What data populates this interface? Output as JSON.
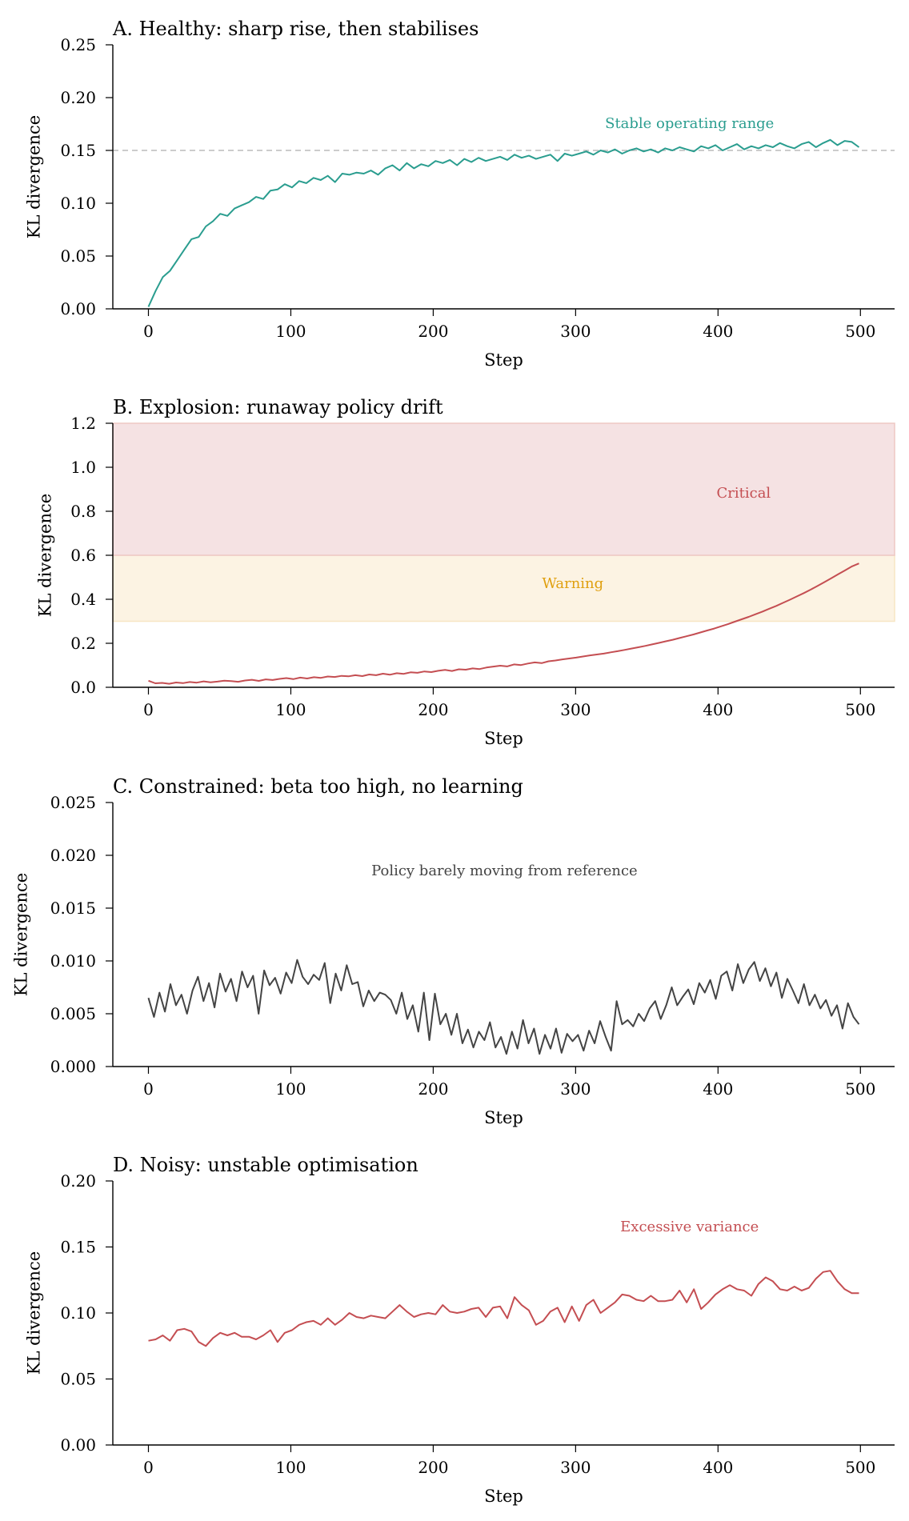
{
  "figure": {
    "panels": [
      {
        "id": "A",
        "title": "A. Healthy: sharp rise, then stabilises",
        "xlabel": "Step",
        "ylabel": "KL divergence",
        "color": "#2a9d8f"
      },
      {
        "id": "B",
        "title": "B. Explosion: runaway policy drift",
        "xlabel": "Step",
        "ylabel": "KL divergence",
        "color": "#c44e52"
      },
      {
        "id": "C",
        "title": "C. Constrained: beta too high, no learning",
        "xlabel": "Step",
        "ylabel": "KL divergence",
        "color": "#444444"
      },
      {
        "id": "D",
        "title": "D. Noisy: unstable optimisation",
        "xlabel": "Step",
        "ylabel": "KL divergence",
        "color": "#c44e52"
      }
    ]
  },
  "chart_data": [
    {
      "type": "line",
      "title": "A. Healthy: sharp rise, then stabilises",
      "xlabel": "Step",
      "ylabel": "KL divergence",
      "xlim": [
        -25,
        524
      ],
      "ylim": [
        0,
        0.25
      ],
      "xticks": [
        0,
        100,
        200,
        300,
        400,
        500
      ],
      "yticks": [
        0.0,
        0.05,
        0.1,
        0.15,
        0.2,
        0.25
      ],
      "ytick_labels": [
        "0.00",
        "0.05",
        "0.10",
        "0.15",
        "0.20",
        "0.25"
      ],
      "xtick_labels": [
        "0",
        "100",
        "200",
        "300",
        "400",
        "500"
      ],
      "grid": false,
      "series": [
        {
          "name": "KL divergence",
          "color": "#2a9d8f",
          "x_step": 5,
          "x_start": 0,
          "values": [
            0.002,
            0.017,
            0.03,
            0.036,
            0.046,
            0.056,
            0.066,
            0.068,
            0.078,
            0.083,
            0.09,
            0.088,
            0.095,
            0.098,
            0.101,
            0.106,
            0.104,
            0.112,
            0.113,
            0.118,
            0.115,
            0.121,
            0.119,
            0.124,
            0.122,
            0.126,
            0.12,
            0.128,
            0.127,
            0.129,
            0.128,
            0.131,
            0.127,
            0.133,
            0.136,
            0.131,
            0.138,
            0.133,
            0.137,
            0.135,
            0.14,
            0.138,
            0.141,
            0.136,
            0.142,
            0.139,
            0.143,
            0.14,
            0.142,
            0.144,
            0.141,
            0.146,
            0.143,
            0.145,
            0.142,
            0.144,
            0.146,
            0.14,
            0.147,
            0.145,
            0.147,
            0.149,
            0.146,
            0.15,
            0.148,
            0.151,
            0.147,
            0.15,
            0.152,
            0.149,
            0.151,
            0.148,
            0.152,
            0.15,
            0.153,
            0.151,
            0.149,
            0.154,
            0.152,
            0.155,
            0.15,
            0.153,
            0.156,
            0.151,
            0.154,
            0.152,
            0.155,
            0.153,
            0.157,
            0.154,
            0.152,
            0.156,
            0.158,
            0.153,
            0.157,
            0.16,
            0.155,
            0.159,
            0.158,
            0.153
          ],
          "note": "sampled every 5 steps from 0 to 495 plus final point"
        }
      ],
      "reference_lines": [
        {
          "y": 0.15,
          "style": "dashed",
          "color": "#bbbbbb"
        }
      ],
      "annotations": [
        {
          "text": "Stable operating range",
          "x": 380,
          "y": 0.175,
          "color": "#2a9d8f"
        }
      ]
    },
    {
      "type": "line",
      "title": "B. Explosion: runaway policy drift",
      "xlabel": "Step",
      "ylabel": "KL divergence",
      "xlim": [
        -25,
        524
      ],
      "ylim": [
        0,
        1.2
      ],
      "xticks": [
        0,
        100,
        200,
        300,
        400,
        500
      ],
      "yticks": [
        0.0,
        0.2,
        0.4,
        0.6,
        0.8,
        1.0,
        1.2
      ],
      "ytick_labels": [
        "0.0",
        "0.2",
        "0.4",
        "0.6",
        "0.8",
        "1.0",
        "1.2"
      ],
      "xtick_labels": [
        "0",
        "100",
        "200",
        "300",
        "400",
        "500"
      ],
      "grid": false,
      "series": [
        {
          "name": "KL divergence",
          "color": "#c44e52",
          "x_step": 5,
          "x_start": 0,
          "values": [
            0.03,
            0.018,
            0.02,
            0.016,
            0.022,
            0.019,
            0.024,
            0.021,
            0.027,
            0.023,
            0.026,
            0.03,
            0.028,
            0.025,
            0.031,
            0.034,
            0.029,
            0.036,
            0.033,
            0.038,
            0.042,
            0.037,
            0.044,
            0.04,
            0.046,
            0.043,
            0.049,
            0.047,
            0.052,
            0.05,
            0.055,
            0.051,
            0.058,
            0.055,
            0.062,
            0.057,
            0.064,
            0.061,
            0.068,
            0.066,
            0.072,
            0.069,
            0.075,
            0.079,
            0.074,
            0.082,
            0.08,
            0.086,
            0.083,
            0.09,
            0.094,
            0.098,
            0.095,
            0.104,
            0.101,
            0.108,
            0.113,
            0.11,
            0.118,
            0.122,
            0.127,
            0.131,
            0.135,
            0.14,
            0.145,
            0.149,
            0.153,
            0.159,
            0.164,
            0.17,
            0.176,
            0.182,
            0.188,
            0.195,
            0.202,
            0.209,
            0.216,
            0.224,
            0.232,
            0.24,
            0.249,
            0.258,
            0.267,
            0.277,
            0.287,
            0.298,
            0.309,
            0.32,
            0.332,
            0.344,
            0.357,
            0.37,
            0.384,
            0.398,
            0.413,
            0.428,
            0.444,
            0.461,
            0.478,
            0.496,
            0.514,
            0.532,
            0.55,
            0.563
          ],
          "note": "sampled every 5 steps"
        }
      ],
      "bands": [
        {
          "label": "Warning",
          "y0": 0.3,
          "y1": 0.6,
          "color": "#fcf3e3",
          "edge": "#f7e6c4"
        },
        {
          "label": "Critical",
          "y0": 0.6,
          "y1": 1.2,
          "color": "#f5e2e3",
          "edge": "#eec8c4"
        }
      ],
      "annotations": [
        {
          "text": "Critical",
          "x": 418,
          "y": 0.88,
          "color": "#c44e52"
        },
        {
          "text": "Warning",
          "x": 298,
          "y": 0.47,
          "color": "#e0a010"
        }
      ]
    },
    {
      "type": "line",
      "title": "C. Constrained: beta too high, no learning",
      "xlabel": "Step",
      "ylabel": "KL divergence",
      "xlim": [
        -25,
        524
      ],
      "ylim": [
        0,
        0.025
      ],
      "xticks": [
        0,
        100,
        200,
        300,
        400,
        500
      ],
      "yticks": [
        0.0,
        0.005,
        0.01,
        0.015,
        0.02,
        0.025
      ],
      "ytick_labels": [
        "0.000",
        "0.005",
        "0.010",
        "0.015",
        "0.020",
        "0.025"
      ],
      "xtick_labels": [
        "0",
        "100",
        "200",
        "300",
        "400",
        "500"
      ],
      "grid": false,
      "series": [
        {
          "name": "KL divergence",
          "color": "#444444",
          "x_step": 5,
          "x_start": 0,
          "values": [
            0.0065,
            0.0047,
            0.007,
            0.0052,
            0.0078,
            0.0058,
            0.0068,
            0.005,
            0.0072,
            0.0085,
            0.0062,
            0.0079,
            0.0056,
            0.0088,
            0.0071,
            0.0083,
            0.0062,
            0.009,
            0.0075,
            0.0086,
            0.005,
            0.0091,
            0.0077,
            0.0084,
            0.0069,
            0.0089,
            0.0079,
            0.0101,
            0.0085,
            0.0078,
            0.0087,
            0.0082,
            0.0098,
            0.006,
            0.0088,
            0.0072,
            0.0096,
            0.0078,
            0.008,
            0.0057,
            0.0072,
            0.0062,
            0.007,
            0.0068,
            0.0063,
            0.005,
            0.007,
            0.0045,
            0.0058,
            0.0033,
            0.007,
            0.0025,
            0.0069,
            0.004,
            0.005,
            0.003,
            0.005,
            0.0022,
            0.0035,
            0.0018,
            0.0033,
            0.0025,
            0.0042,
            0.0018,
            0.0028,
            0.0012,
            0.0033,
            0.0017,
            0.0044,
            0.0022,
            0.0036,
            0.0012,
            0.003,
            0.0017,
            0.0036,
            0.0013,
            0.0031,
            0.0024,
            0.003,
            0.0015,
            0.0034,
            0.0022,
            0.0043,
            0.0028,
            0.0015,
            0.0062,
            0.004,
            0.0044,
            0.0038,
            0.005,
            0.0043,
            0.0055,
            0.0062,
            0.0045,
            0.0058,
            0.0075,
            0.0058,
            0.0066,
            0.0073,
            0.0059,
            0.0079,
            0.007,
            0.0082,
            0.0064,
            0.0086,
            0.009,
            0.0072,
            0.0097,
            0.0079,
            0.0092,
            0.0099,
            0.0081,
            0.0093,
            0.0076,
            0.0089,
            0.0065,
            0.0083,
            0.0072,
            0.006,
            0.0078,
            0.0058,
            0.0068,
            0.0055,
            0.0063,
            0.0048,
            0.0058,
            0.0036,
            0.006,
            0.0047,
            0.004
          ],
          "note": "sampled roughly every 4 steps across 0–499"
        }
      ],
      "annotations": [
        {
          "text": "Policy barely moving from reference",
          "x": 250,
          "y": 0.0185,
          "color": "#444444"
        }
      ]
    },
    {
      "type": "line",
      "title": "D. Noisy: unstable optimisation",
      "xlabel": "Step",
      "ylabel": "KL divergence",
      "xlim": [
        -25,
        524
      ],
      "ylim": [
        0,
        0.2
      ],
      "xticks": [
        0,
        100,
        200,
        300,
        400,
        500
      ],
      "yticks": [
        0.0,
        0.05,
        0.1,
        0.15,
        0.2
      ],
      "ytick_labels": [
        "0.00",
        "0.05",
        "0.10",
        "0.15",
        "0.20"
      ],
      "xtick_labels": [
        "0",
        "100",
        "200",
        "300",
        "400",
        "500"
      ],
      "grid": false,
      "series": [
        {
          "name": "KL divergence",
          "color": "#c44e52",
          "x_step": 5,
          "x_start": 0,
          "values": [
            0.079,
            0.08,
            0.083,
            0.079,
            0.087,
            0.088,
            0.086,
            0.078,
            0.075,
            0.081,
            0.085,
            0.083,
            0.085,
            0.082,
            0.082,
            0.08,
            0.083,
            0.087,
            0.078,
            0.085,
            0.087,
            0.091,
            0.093,
            0.094,
            0.091,
            0.096,
            0.091,
            0.095,
            0.1,
            0.097,
            0.096,
            0.098,
            0.097,
            0.096,
            0.101,
            0.106,
            0.101,
            0.097,
            0.099,
            0.1,
            0.099,
            0.106,
            0.101,
            0.1,
            0.101,
            0.103,
            0.104,
            0.097,
            0.104,
            0.105,
            0.096,
            0.112,
            0.106,
            0.102,
            0.091,
            0.094,
            0.101,
            0.104,
            0.093,
            0.105,
            0.094,
            0.106,
            0.11,
            0.1,
            0.104,
            0.108,
            0.114,
            0.113,
            0.11,
            0.109,
            0.113,
            0.109,
            0.109,
            0.11,
            0.117,
            0.108,
            0.118,
            0.103,
            0.108,
            0.114,
            0.118,
            0.121,
            0.118,
            0.117,
            0.113,
            0.122,
            0.127,
            0.124,
            0.118,
            0.117,
            0.12,
            0.117,
            0.119,
            0.126,
            0.131,
            0.132,
            0.124,
            0.118,
            0.115,
            0.115
          ],
          "note": "smoothed series sampled every 5 steps"
        }
      ],
      "annotations": [
        {
          "text": "Excessive variance",
          "x": 380,
          "y": 0.165,
          "color": "#c44e52"
        }
      ]
    }
  ]
}
